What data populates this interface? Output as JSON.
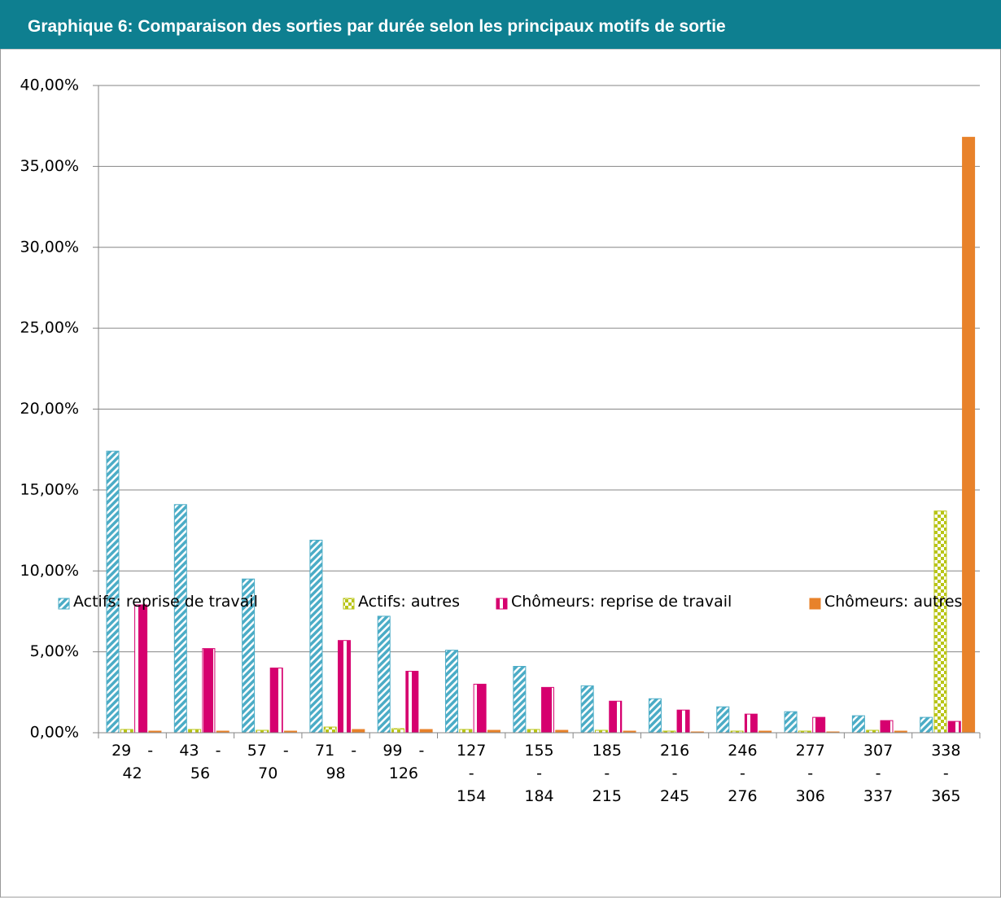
{
  "chart_data": {
    "type": "bar",
    "title": "Graphique 6: Comparaison des sorties par durée selon les principaux motifs de sortie",
    "categories": [
      "29 - 42",
      "43 - 56",
      "57 - 70",
      "71 - 98",
      "99 - 126",
      "127 - 154",
      "155 - 184",
      "185 - 215",
      "216 - 245",
      "246 - 276",
      "277 - 306",
      "307 - 337",
      "338 - 365"
    ],
    "series": [
      {
        "name": "Actifs: reprise de travail",
        "color": "#4bacc6",
        "pattern": "diagonal",
        "values": [
          17.4,
          14.1,
          9.5,
          11.9,
          7.2,
          5.1,
          4.1,
          2.9,
          2.1,
          1.6,
          1.3,
          1.05,
          0.95
        ]
      },
      {
        "name": "Actifs: autres",
        "color": "#b8c416",
        "pattern": "checker",
        "values": [
          0.2,
          0.2,
          0.15,
          0.35,
          0.25,
          0.2,
          0.2,
          0.15,
          0.1,
          0.1,
          0.1,
          0.15,
          13.7
        ]
      },
      {
        "name": "Chômeurs: reprise de travail",
        "color": "#d6006f",
        "pattern": "vertical",
        "values": [
          7.9,
          5.2,
          4.0,
          5.7,
          3.8,
          3.0,
          2.8,
          1.95,
          1.4,
          1.15,
          0.95,
          0.75,
          0.7
        ]
      },
      {
        "name": "Chômeurs: autres",
        "color": "#e8822a",
        "pattern": "solid",
        "values": [
          0.1,
          0.1,
          0.1,
          0.2,
          0.2,
          0.15,
          0.15,
          0.1,
          0.05,
          0.1,
          0.05,
          0.1,
          36.8
        ]
      }
    ],
    "ylim": [
      0,
      40
    ],
    "yticks": [
      {
        "value": 0,
        "label": "0,00%"
      },
      {
        "value": 5,
        "label": "5,00%"
      },
      {
        "value": 10,
        "label": "10,00%"
      },
      {
        "value": 15,
        "label": "15,00%"
      },
      {
        "value": 20,
        "label": "20,00%"
      },
      {
        "value": 25,
        "label": "25,00%"
      },
      {
        "value": 30,
        "label": "30,00%"
      },
      {
        "value": 35,
        "label": "35,00%"
      },
      {
        "value": 40,
        "label": "40,00%"
      }
    ],
    "grid": true,
    "legend": "bottom"
  }
}
